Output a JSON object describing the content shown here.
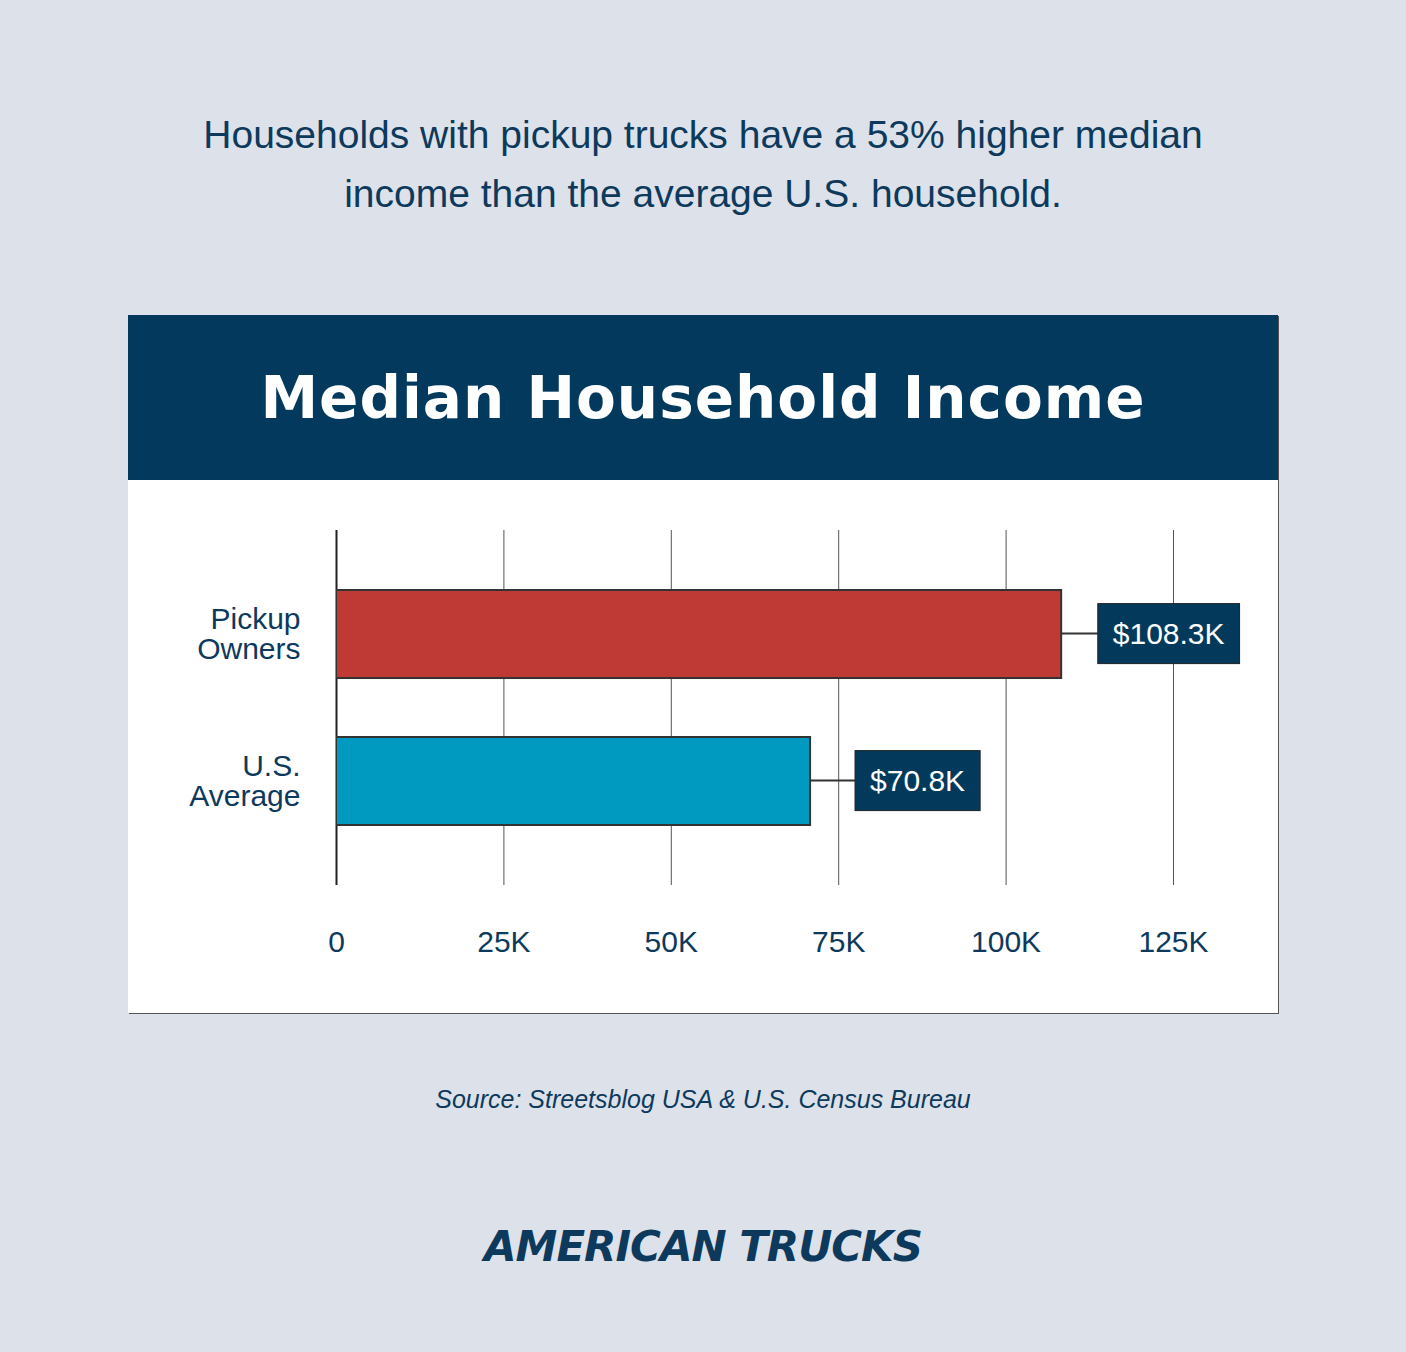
{
  "chart_data": {
    "type": "bar",
    "orientation": "horizontal",
    "title": "Median Household Income",
    "subtitle": "Households with pickup trucks have a 53% higher median income than the average U.S. household.",
    "categories": [
      "Pickup Owners",
      "U.S. Average"
    ],
    "values": [
      108300,
      70800
    ],
    "value_labels": [
      "$108.3K",
      "$70.8K"
    ],
    "colors": [
      "#c03a35",
      "#0099c0"
    ],
    "xlim": [
      0,
      125000
    ],
    "xticks": [
      0,
      {
        "value": 25000,
        "label": "25K"
      },
      {
        "value": 50000,
        "label": "50K"
      },
      {
        "value": 75000,
        "label": "75K"
      },
      {
        "value": 100000,
        "label": "100K"
      },
      {
        "value": 125000,
        "label": "125K"
      }
    ],
    "grid": true,
    "data_labels": true,
    "source": "Source: Streetsblog USA & U.S. Census Bureau",
    "logo": "AMERICAN TRUCKS"
  }
}
